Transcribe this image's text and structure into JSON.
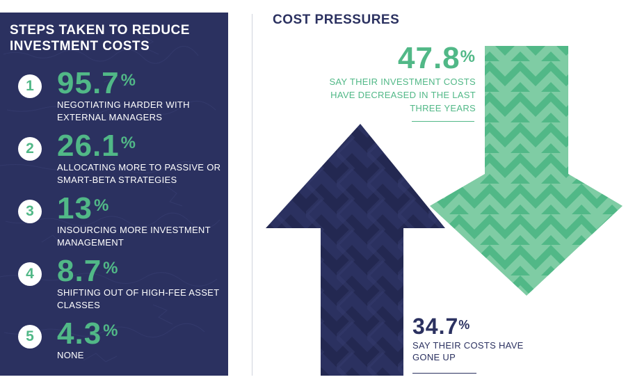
{
  "left_panel": {
    "title": "STEPS TAKEN TO REDUCE INVESTMENT COSTS",
    "steps": [
      {
        "number": "1",
        "value": "95.7",
        "pct": "%",
        "label": "NEGOTIATING HARDER WITH EXTERNAL MANAGERS"
      },
      {
        "number": "2",
        "value": "26.1",
        "pct": "%",
        "label": "ALLOCATING MORE TO PASSIVE OR SMART-BETA STRATEGIES"
      },
      {
        "number": "3",
        "value": "13",
        "pct": "%",
        "label": "INSOURCING MORE INVESTMENT MANAGEMENT"
      },
      {
        "number": "4",
        "value": "8.7",
        "pct": "%",
        "label": "SHIFTING OUT OF HIGH-FEE ASSET CLASSES"
      },
      {
        "number": "5",
        "value": "4.3",
        "pct": "%",
        "label": "NONE"
      }
    ]
  },
  "right_panel": {
    "title": "COST PRESSURES",
    "decreased": {
      "value": "47.8",
      "pct": "%",
      "label": "SAY THEIR INVESTMENT COSTS HAVE DECREASED IN THE LAST THREE YEARS"
    },
    "increased": {
      "value": "34.7",
      "pct": "%",
      "label": "SAY THEIR COSTS HAVE GONE UP"
    }
  },
  "colors": {
    "navy": "#2b3160",
    "green": "#51b887",
    "light_green": "#7fcca4",
    "navy_stripe": "#222750",
    "white": "#ffffff"
  },
  "icons": [
    "up-arrow-icon",
    "down-arrow-icon"
  ]
}
